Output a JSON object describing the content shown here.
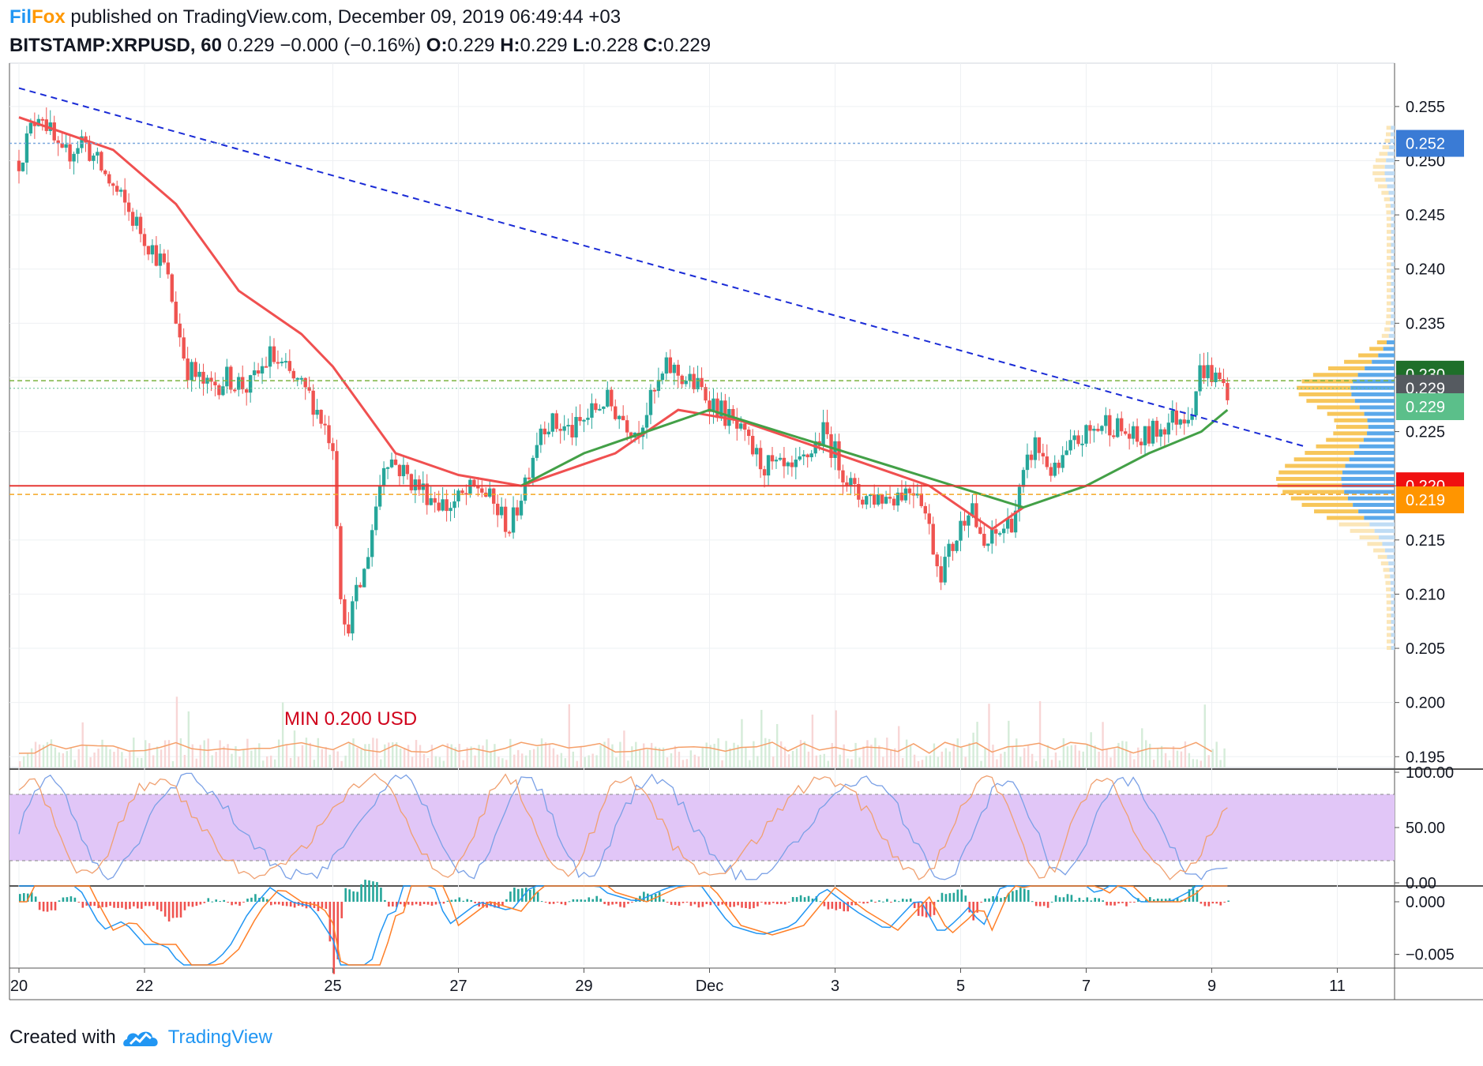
{
  "header": {
    "brand_fil": "Fil",
    "brand_fox": "Fox",
    "published": "published on TradingView.com, December 09, 2019 06:49:44 +03",
    "symbol": "BITSTAMP:XRPUSD, 60",
    "last": "0.229",
    "change": "−0.000 (−0.16%)",
    "o_label": "O:",
    "o": "0.229",
    "h_label": "H:",
    "h": "0.229",
    "l_label": "L:",
    "l": "0.228",
    "c_label": "C:",
    "c": "0.229"
  },
  "footer": {
    "created_with": "Created with",
    "brand": "TradingView"
  },
  "annotation": {
    "min_label": "MIN 0.200 USD"
  },
  "price_axis": {
    "ticks": [
      "0.255",
      "0.250",
      "0.245",
      "0.240",
      "0.235",
      "0.230",
      "0.225",
      "0.220",
      "0.215",
      "0.210",
      "0.205",
      "0.200",
      "0.195"
    ],
    "badges": [
      {
        "label": "0.252",
        "color": "#3a7bd5"
      },
      {
        "label": "0.230",
        "color": "#1f6f2a"
      },
      {
        "label": "0.229",
        "color": "#555a60"
      },
      {
        "label": "0.229",
        "color": "#5bbf8a"
      },
      {
        "label": "0.220",
        "color": "#f01010"
      },
      {
        "label": "0.219",
        "color": "#ff9500"
      }
    ]
  },
  "stoch_axis": {
    "ticks": [
      "100.00",
      "50.00",
      "0.00"
    ]
  },
  "macd_axis": {
    "ticks": [
      "0.000",
      "−0.005"
    ]
  },
  "time_axis": {
    "ticks": [
      "20",
      "22",
      "25",
      "27",
      "29",
      "Dec",
      "3",
      "5",
      "7",
      "9",
      "11"
    ]
  },
  "colors": {
    "up": "#26a69a",
    "down": "#ef5350",
    "ma_red": "#f05050",
    "ma_green": "#43a047",
    "trendline": "#1a2bd6",
    "support": "#e53935",
    "stoch_band": "#e1c6f7"
  },
  "chart_data": {
    "type": "candlestick",
    "symbol": "BITSTAMP:XRPUSD",
    "interval": "60",
    "x_range": [
      "Nov 20 2019",
      "Dec 11 2019"
    ],
    "ylim": [
      0.194,
      0.259
    ],
    "close_path": [
      {
        "t": "Nov 20 00:00",
        "v": 0.25
      },
      {
        "t": "Nov 20 08:00",
        "v": 0.255
      },
      {
        "t": "Nov 20 16:00",
        "v": 0.25
      },
      {
        "t": "Nov 21 00:00",
        "v": 0.252
      },
      {
        "t": "Nov 21 08:00",
        "v": 0.249
      },
      {
        "t": "Nov 21 16:00",
        "v": 0.246
      },
      {
        "t": "Nov 22 00:00",
        "v": 0.243
      },
      {
        "t": "Nov 22 08:00",
        "v": 0.24
      },
      {
        "t": "Nov 22 16:00",
        "v": 0.231
      },
      {
        "t": "Nov 23 00:00",
        "v": 0.229
      },
      {
        "t": "Nov 23 08:00",
        "v": 0.23
      },
      {
        "t": "Nov 23 16:00",
        "v": 0.229
      },
      {
        "t": "Nov 24 00:00",
        "v": 0.232
      },
      {
        "t": "Nov 24 08:00",
        "v": 0.23
      },
      {
        "t": "Nov 24 16:00",
        "v": 0.228
      },
      {
        "t": "Nov 25 00:00",
        "v": 0.224
      },
      {
        "t": "Nov 25 04:00",
        "v": 0.206
      },
      {
        "t": "Nov 25 12:00",
        "v": 0.212
      },
      {
        "t": "Nov 25 20:00",
        "v": 0.223
      },
      {
        "t": "Nov 26 08:00",
        "v": 0.22
      },
      {
        "t": "Nov 26 20:00",
        "v": 0.218
      },
      {
        "t": "Nov 27 08:00",
        "v": 0.22
      },
      {
        "t": "Nov 27 20:00",
        "v": 0.216
      },
      {
        "t": "Nov 28 08:00",
        "v": 0.226
      },
      {
        "t": "Nov 28 20:00",
        "v": 0.225
      },
      {
        "t": "Nov 29 08:00",
        "v": 0.228
      },
      {
        "t": "Nov 29 20:00",
        "v": 0.225
      },
      {
        "t": "Nov 30 08:00",
        "v": 0.231
      },
      {
        "t": "Nov 30 20:00",
        "v": 0.229
      },
      {
        "t": "Dec 01 08:00",
        "v": 0.226
      },
      {
        "t": "Dec 01 20:00",
        "v": 0.222
      },
      {
        "t": "Dec 02 08:00",
        "v": 0.221
      },
      {
        "t": "Dec 02 20:00",
        "v": 0.225
      },
      {
        "t": "Dec 03 08:00",
        "v": 0.219
      },
      {
        "t": "Dec 03 20:00",
        "v": 0.219
      },
      {
        "t": "Dec 04 08:00",
        "v": 0.22
      },
      {
        "t": "Dec 04 16:00",
        "v": 0.212
      },
      {
        "t": "Dec 04 22:00",
        "v": 0.215
      },
      {
        "t": "Dec 05 04:00",
        "v": 0.219
      },
      {
        "t": "Dec 05 08:00",
        "v": 0.214
      },
      {
        "t": "Dec 05 20:00",
        "v": 0.217
      },
      {
        "t": "Dec 06 04:00",
        "v": 0.224
      },
      {
        "t": "Dec 06 12:00",
        "v": 0.221
      },
      {
        "t": "Dec 06 20:00",
        "v": 0.224
      },
      {
        "t": "Dec 07 08:00",
        "v": 0.226
      },
      {
        "t": "Dec 07 20:00",
        "v": 0.224
      },
      {
        "t": "Dec 08 08:00",
        "v": 0.226
      },
      {
        "t": "Dec 08 16:00",
        "v": 0.227
      },
      {
        "t": "Dec 08 20:00",
        "v": 0.231
      },
      {
        "t": "Dec 09 06:00",
        "v": 0.229
      }
    ],
    "moving_averages": [
      {
        "color": "red",
        "points": [
          {
            "t": "Nov 20 00:00",
            "v": 0.254
          },
          {
            "t": "Nov 21 12:00",
            "v": 0.251
          },
          {
            "t": "Nov 22 12:00",
            "v": 0.246
          },
          {
            "t": "Nov 23 12:00",
            "v": 0.238
          },
          {
            "t": "Nov 24 12:00",
            "v": 0.234
          },
          {
            "t": "Nov 25 00:00",
            "v": 0.231
          },
          {
            "t": "Nov 26 00:00",
            "v": 0.223
          },
          {
            "t": "Nov 27 00:00",
            "v": 0.221
          },
          {
            "t": "Nov 28 00:00",
            "v": 0.22
          },
          {
            "t": "Nov 29 12:00",
            "v": 0.223
          },
          {
            "t": "Nov 30 12:00",
            "v": 0.227
          },
          {
            "t": "Dec 01 12:00",
            "v": 0.226
          },
          {
            "t": "Dec 02 12:00",
            "v": 0.224
          },
          {
            "t": "Dec 03 12:00",
            "v": 0.222
          },
          {
            "t": "Dec 04 12:00",
            "v": 0.22
          },
          {
            "t": "Dec 05 12:00",
            "v": 0.216
          },
          {
            "t": "Dec 06 00:00",
            "v": 0.218
          }
        ]
      },
      {
        "color": "green",
        "points": [
          {
            "t": "Nov 28 00:00",
            "v": 0.22
          },
          {
            "t": "Nov 29 00:00",
            "v": 0.223
          },
          {
            "t": "Nov 30 00:00",
            "v": 0.225
          },
          {
            "t": "Dec 01 00:00",
            "v": 0.227
          },
          {
            "t": "Dec 06 00:00",
            "v": 0.218
          },
          {
            "t": "Dec 07 00:00",
            "v": 0.22
          },
          {
            "t": "Dec 08 00:00",
            "v": 0.223
          },
          {
            "t": "Dec 08 20:00",
            "v": 0.225
          },
          {
            "t": "Dec 09 06:00",
            "v": 0.227
          }
        ]
      }
    ],
    "trendline": [
      {
        "t": "Nov 20 00:00",
        "v": 0.2567
      },
      {
        "t": "Dec 10 12:00",
        "v": 0.2236
      }
    ],
    "horizontal_levels": [
      {
        "v": 0.22,
        "style": "solid red"
      },
      {
        "v": 0.2192,
        "style": "dashed orange"
      },
      {
        "v": 0.2297,
        "style": "dashed green"
      },
      {
        "v": 0.229,
        "style": "dotted gray"
      },
      {
        "v": 0.2516,
        "style": "dotted blue"
      }
    ],
    "stochastic": {
      "ylim": [
        0,
        100
      ],
      "band": [
        20,
        80
      ]
    },
    "macd": {
      "ylim": [
        -0.006,
        0.0015
      ]
    }
  }
}
